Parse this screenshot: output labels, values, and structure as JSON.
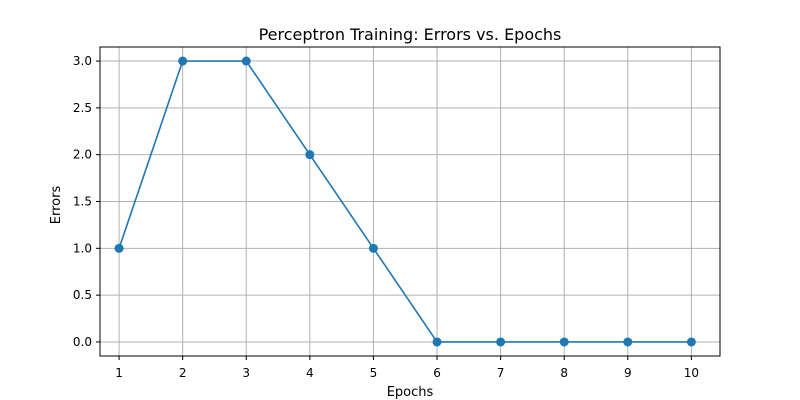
{
  "chart_data": {
    "type": "line",
    "title": "Perceptron Training: Errors vs. Epochs",
    "xlabel": "Epochs",
    "ylabel": "Errors",
    "x": [
      1,
      2,
      3,
      4,
      5,
      6,
      7,
      8,
      9,
      10
    ],
    "series": [
      {
        "values": [
          1,
          3,
          3,
          2,
          1,
          0,
          0,
          0,
          0,
          0
        ],
        "color": "#1f77b4",
        "marker": "circle"
      }
    ],
    "xlim": [
      0.7,
      10.45
    ],
    "ylim": [
      -0.15,
      3.15
    ],
    "x_ticks": [
      "1",
      "2",
      "3",
      "4",
      "5",
      "6",
      "7",
      "8",
      "9",
      "10"
    ],
    "x_tick_values": [
      1,
      2,
      3,
      4,
      5,
      6,
      7,
      8,
      9,
      10
    ],
    "y_ticks": [
      "0.0",
      "0.5",
      "1.0",
      "1.5",
      "2.0",
      "2.5",
      "3.0"
    ],
    "y_tick_values": [
      0,
      0.5,
      1,
      1.5,
      2,
      2.5,
      3
    ],
    "grid": true,
    "grid_color": "#b0b0b0",
    "axis_color": "#000000"
  }
}
